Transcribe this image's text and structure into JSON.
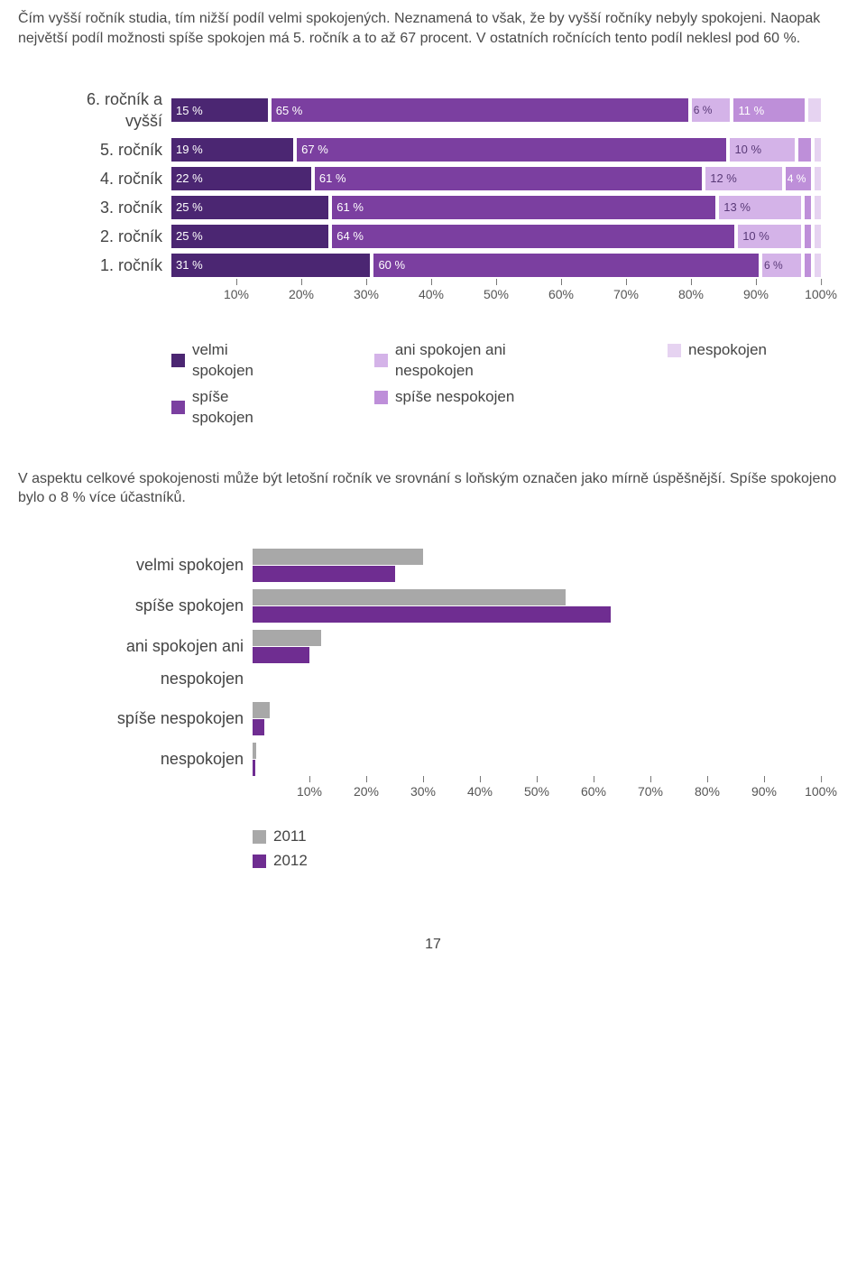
{
  "intro_text": "Čím vyšší ročník studia, tím nižší podíl velmi spokojených. Neznamená to však, že by vyšší ročníky nebyly spokojeni. Naopak největší podíl možnosti spíše spokojen má 5. ročník a to až 67 procent. V ostatních ročnících tento podíl neklesl pod 60 %.",
  "chart1": {
    "type": "stacked-horizontal-bar",
    "colors": {
      "velmi": "#4b2672",
      "spise": "#7b3fa0",
      "ani": "#d4b3e8",
      "spise_ne": "#be8fd9",
      "ne": "#e6d3f1"
    },
    "axis_ticks": [
      "10%",
      "20%",
      "30%",
      "40%",
      "50%",
      "60%",
      "70%",
      "80%",
      "90%",
      "100%"
    ],
    "rows": [
      {
        "label": "6. ročník a vyšší",
        "segs": [
          {
            "k": "velmi",
            "v": 15,
            "t": "15 %"
          },
          {
            "k": "spise",
            "v": 65,
            "t": "65 %"
          },
          {
            "k": "ani",
            "v": 6,
            "t": "6 %"
          },
          {
            "k": "spise_ne",
            "v": 11,
            "t": "11 %"
          },
          {
            "k": "ne",
            "v": 2,
            "t": ""
          }
        ]
      },
      {
        "label": "5. ročník",
        "segs": [
          {
            "k": "velmi",
            "v": 19,
            "t": "19 %"
          },
          {
            "k": "spise",
            "v": 67,
            "t": "67 %"
          },
          {
            "k": "ani",
            "v": 10,
            "t": "10 %"
          },
          {
            "k": "spise_ne",
            "v": 2,
            "t": ""
          },
          {
            "k": "ne",
            "v": 1,
            "t": ""
          }
        ]
      },
      {
        "label": "4. ročník",
        "segs": [
          {
            "k": "velmi",
            "v": 22,
            "t": "22 %"
          },
          {
            "k": "spise",
            "v": 61,
            "t": "61 %"
          },
          {
            "k": "ani",
            "v": 12,
            "t": "12 %"
          },
          {
            "k": "spise_ne",
            "v": 4,
            "t": "4 %"
          },
          {
            "k": "ne",
            "v": 1,
            "t": ""
          }
        ]
      },
      {
        "label": "3. ročník",
        "segs": [
          {
            "k": "velmi",
            "v": 25,
            "t": "25 %"
          },
          {
            "k": "spise",
            "v": 61,
            "t": "61 %"
          },
          {
            "k": "ani",
            "v": 13,
            "t": "13 %"
          },
          {
            "k": "spise_ne",
            "v": 1,
            "t": ""
          },
          {
            "k": "ne",
            "v": 1,
            "t": ""
          }
        ]
      },
      {
        "label": "2. ročník",
        "segs": [
          {
            "k": "velmi",
            "v": 25,
            "t": "25 %"
          },
          {
            "k": "spise",
            "v": 64,
            "t": "64 %"
          },
          {
            "k": "ani",
            "v": 10,
            "t": "10 %"
          },
          {
            "k": "spise_ne",
            "v": 1,
            "t": ""
          },
          {
            "k": "ne",
            "v": 1,
            "t": ""
          }
        ]
      },
      {
        "label": "1. ročník",
        "segs": [
          {
            "k": "velmi",
            "v": 31,
            "t": "31 %"
          },
          {
            "k": "spise",
            "v": 60,
            "t": "60 %"
          },
          {
            "k": "ani",
            "v": 6,
            "t": "6 %"
          },
          {
            "k": "spise_ne",
            "v": 1,
            "t": ""
          },
          {
            "k": "ne",
            "v": 1,
            "t": ""
          }
        ]
      }
    ],
    "legend": {
      "col1": [
        {
          "k": "velmi",
          "label": "velmi spokojen"
        },
        {
          "k": "spise",
          "label": "spíše spokojen"
        }
      ],
      "col2": [
        {
          "k": "ani",
          "label": "ani spokojen ani nespokojen"
        },
        {
          "k": "spise_ne",
          "label": "spíše nespokojen"
        }
      ],
      "col3": [
        {
          "k": "ne",
          "label": "nespokojen"
        }
      ]
    }
  },
  "mid_text": "V aspektu celkové spokojenosti může být letošní ročník ve srovnání s loňským označen jako mírně úspěšnější. Spíše spokojeno bylo o 8 % více účastníků.",
  "chart2": {
    "type": "grouped-horizontal-bar",
    "colors": {
      "y2011": "#a8a8a8",
      "y2012": "#6f2d91"
    },
    "axis_ticks": [
      "10%",
      "20%",
      "30%",
      "40%",
      "50%",
      "60%",
      "70%",
      "80%",
      "90%",
      "100%"
    ],
    "rows": [
      {
        "label": "velmi spokojen",
        "y2011": 30,
        "y2012": 25
      },
      {
        "label": "spíše spokojen",
        "y2011": 55,
        "y2012": 63
      },
      {
        "label": "ani spokojen ani nespokojen",
        "y2011": 12,
        "y2012": 10
      },
      {
        "label": "spíše nespokojen",
        "y2011": 3,
        "y2012": 2
      },
      {
        "label": "nespokojen",
        "y2011": 0.7,
        "y2012": 0.5
      }
    ],
    "legend": [
      {
        "k": "y2011",
        "label": "2011"
      },
      {
        "k": "y2012",
        "label": "2012"
      }
    ]
  },
  "page_number": "17"
}
